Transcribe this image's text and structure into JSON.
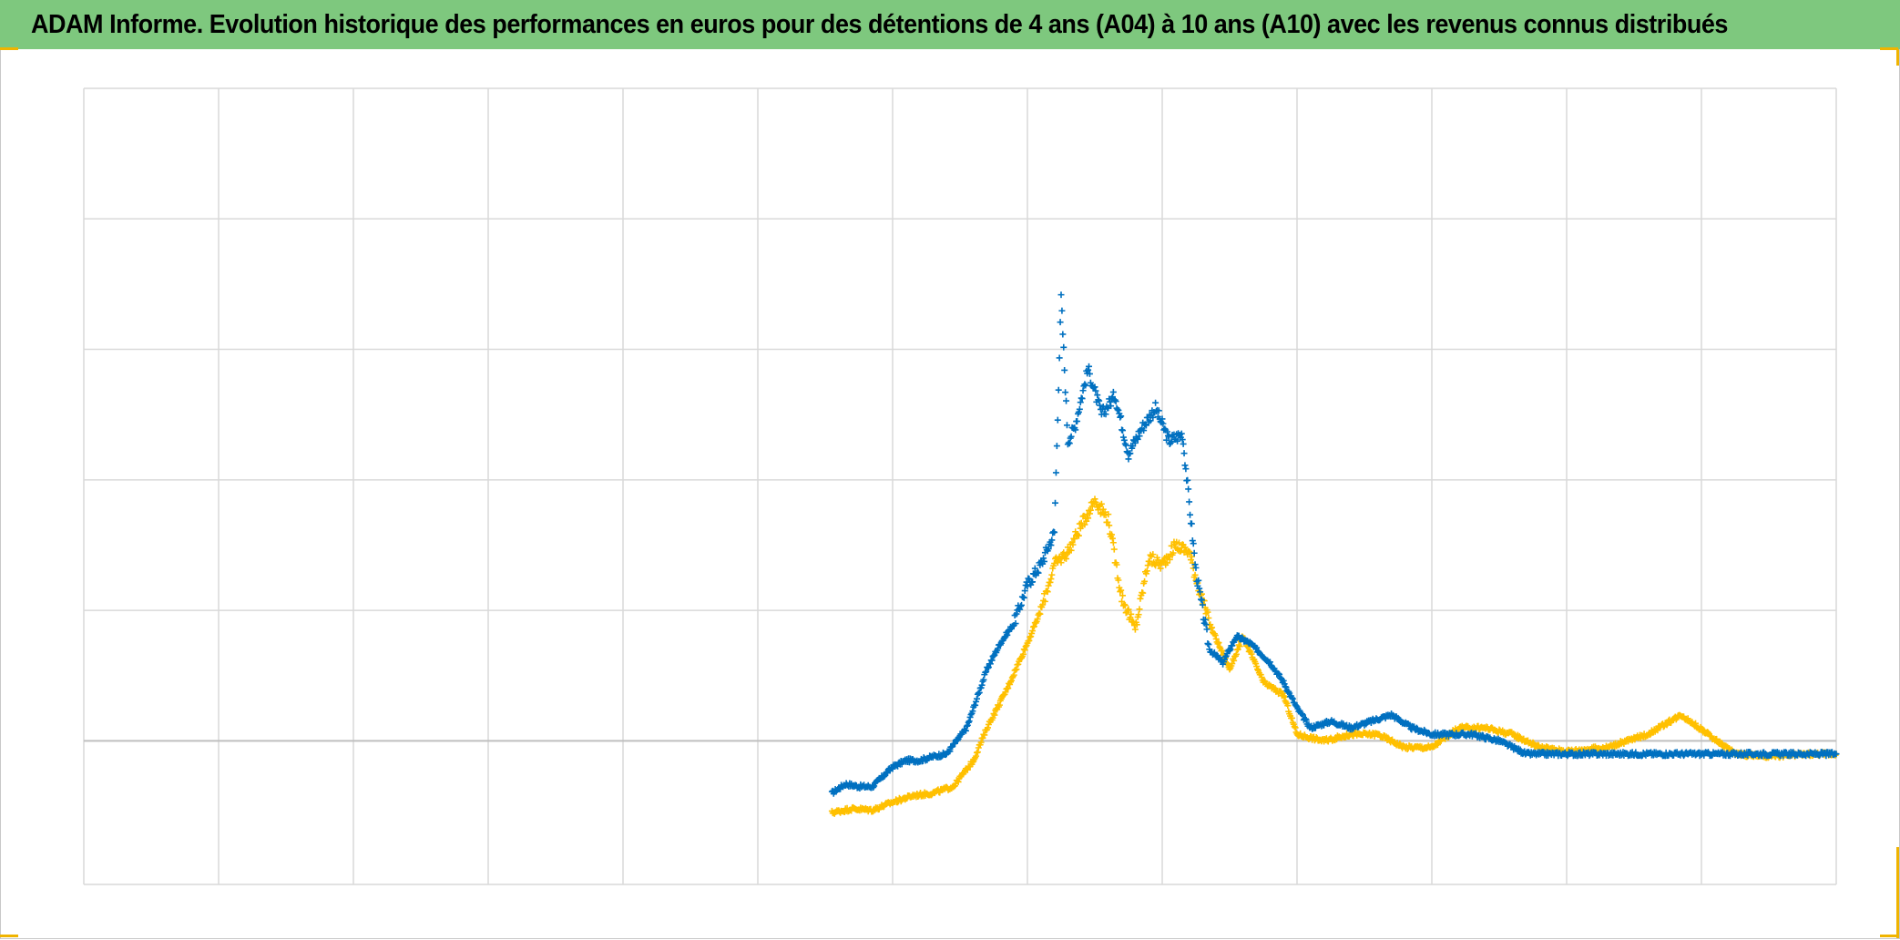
{
  "title": "ADAM Informe. Evolution historique des performances en euros pour des détentions de 4 ans (A04) à 10 ans (A10) avec les revenus connus distribués",
  "colors": {
    "title_bg": "#7ec87e",
    "grid": "#d9d9d9",
    "axis": "#bfbfbf",
    "series_blue": "#0070c0",
    "series_yellow": "#ffc000",
    "handle": "#f0b400"
  },
  "chart_data": {
    "type": "scatter",
    "marker": "plus",
    "grid": true,
    "xlim": [
      0,
      13
    ],
    "ylim": [
      -1.1,
      5
    ],
    "x_gridlines": 13,
    "y_gridlines": [
      5,
      4,
      3,
      2,
      1,
      0
    ],
    "tick_labels_shown": false,
    "legend": "none",
    "series": [
      {
        "color": "series_blue",
        "points": [
          [
            5.55,
            -0.4
          ],
          [
            5.65,
            -0.33
          ],
          [
            5.75,
            -0.35
          ],
          [
            5.85,
            -0.35
          ],
          [
            6.0,
            -0.2
          ],
          [
            6.1,
            -0.15
          ],
          [
            6.2,
            -0.15
          ],
          [
            6.3,
            -0.12
          ],
          [
            6.4,
            -0.1
          ],
          [
            6.55,
            0.1
          ],
          [
            6.7,
            0.55
          ],
          [
            6.8,
            0.75
          ],
          [
            6.9,
            0.9
          ],
          [
            7.0,
            1.2
          ],
          [
            7.1,
            1.35
          ],
          [
            7.2,
            1.6
          ],
          [
            7.25,
            3.4
          ],
          [
            7.3,
            2.3
          ],
          [
            7.35,
            2.4
          ],
          [
            7.45,
            2.85
          ],
          [
            7.55,
            2.5
          ],
          [
            7.65,
            2.65
          ],
          [
            7.75,
            2.2
          ],
          [
            7.85,
            2.4
          ],
          [
            7.95,
            2.55
          ],
          [
            8.05,
            2.3
          ],
          [
            8.15,
            2.35
          ],
          [
            8.25,
            1.3
          ],
          [
            8.35,
            0.7
          ],
          [
            8.45,
            0.6
          ],
          [
            8.55,
            0.8
          ],
          [
            8.65,
            0.75
          ],
          [
            8.8,
            0.6
          ],
          [
            8.9,
            0.45
          ],
          [
            9.0,
            0.25
          ],
          [
            9.1,
            0.1
          ],
          [
            9.25,
            0.15
          ],
          [
            9.4,
            0.1
          ],
          [
            9.55,
            0.15
          ],
          [
            9.7,
            0.2
          ],
          [
            9.85,
            0.1
          ],
          [
            10.0,
            0.05
          ],
          [
            10.15,
            0.05
          ],
          [
            10.3,
            0.05
          ],
          [
            10.5,
            0.0
          ],
          [
            10.7,
            -0.1
          ],
          [
            11.0,
            -0.1
          ],
          [
            11.5,
            -0.1
          ],
          [
            12.0,
            -0.1
          ],
          [
            12.5,
            -0.1
          ],
          [
            13.0,
            -0.1
          ]
        ]
      },
      {
        "color": "series_yellow",
        "points": [
          [
            5.55,
            -0.55
          ],
          [
            5.7,
            -0.52
          ],
          [
            5.85,
            -0.53
          ],
          [
            6.0,
            -0.47
          ],
          [
            6.15,
            -0.42
          ],
          [
            6.3,
            -0.4
          ],
          [
            6.45,
            -0.35
          ],
          [
            6.6,
            -0.15
          ],
          [
            6.7,
            0.1
          ],
          [
            6.85,
            0.4
          ],
          [
            7.0,
            0.75
          ],
          [
            7.1,
            1.0
          ],
          [
            7.2,
            1.35
          ],
          [
            7.3,
            1.45
          ],
          [
            7.4,
            1.65
          ],
          [
            7.5,
            1.85
          ],
          [
            7.6,
            1.7
          ],
          [
            7.7,
            1.1
          ],
          [
            7.8,
            0.85
          ],
          [
            7.9,
            1.4
          ],
          [
            8.0,
            1.35
          ],
          [
            8.1,
            1.5
          ],
          [
            8.2,
            1.45
          ],
          [
            8.25,
            1.25
          ],
          [
            8.35,
            0.9
          ],
          [
            8.5,
            0.55
          ],
          [
            8.6,
            0.8
          ],
          [
            8.75,
            0.45
          ],
          [
            8.9,
            0.35
          ],
          [
            9.0,
            0.05
          ],
          [
            9.2,
            0.0
          ],
          [
            9.4,
            0.05
          ],
          [
            9.6,
            0.05
          ],
          [
            9.8,
            -0.05
          ],
          [
            10.0,
            -0.05
          ],
          [
            10.2,
            0.1
          ],
          [
            10.4,
            0.1
          ],
          [
            10.6,
            0.05
          ],
          [
            10.8,
            -0.05
          ],
          [
            11.0,
            -0.08
          ],
          [
            11.3,
            -0.05
          ],
          [
            11.6,
            0.05
          ],
          [
            11.85,
            0.2
          ],
          [
            12.05,
            0.05
          ],
          [
            12.25,
            -0.1
          ],
          [
            12.5,
            -0.12
          ],
          [
            12.8,
            -0.1
          ],
          [
            13.0,
            -0.1
          ]
        ]
      }
    ]
  }
}
